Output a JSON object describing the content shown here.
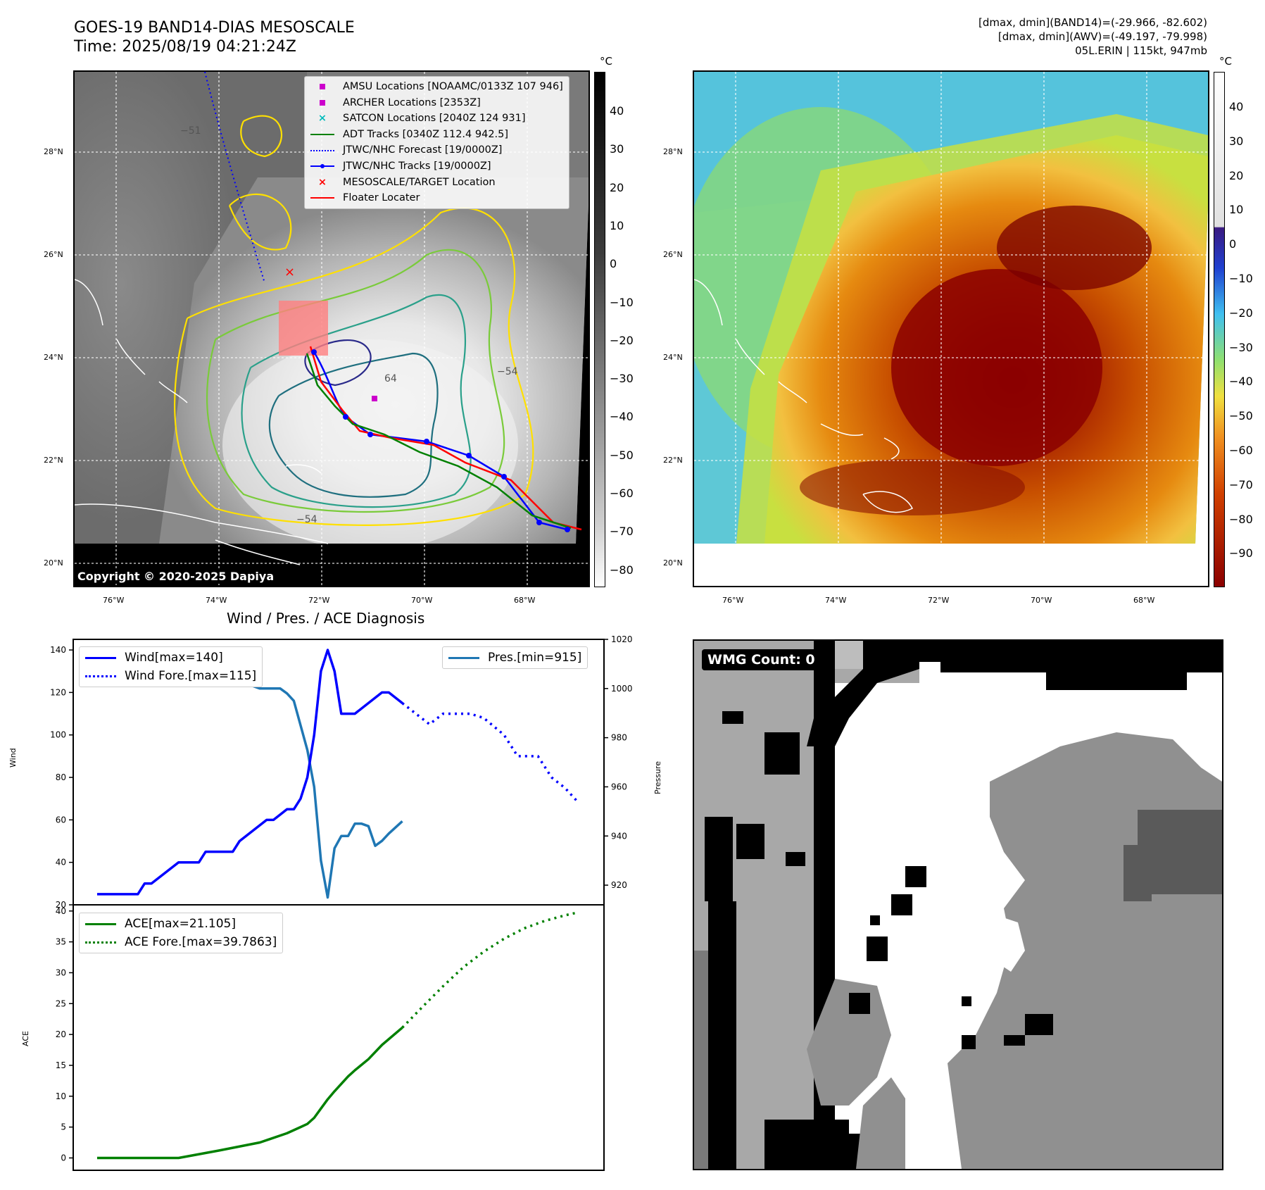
{
  "header": {
    "title_line1": "GOES-19 BAND14-DIAS MESOSCALE",
    "title_line2": "Time: 2025/08/19 04:21:24Z",
    "info_line1": "[dmax, dmin](BAND14)=(-29.966, -82.602)",
    "info_line2": "[dmax, dmin](AWV)=(-49.197, -79.998)",
    "info_line3": "05L.ERIN | 115kt, 947mb"
  },
  "map_axes": {
    "lat_labels": [
      "28°N",
      "26°N",
      "24°N",
      "22°N",
      "20°N"
    ],
    "lon_labels": [
      "76°W",
      "74°W",
      "72°W",
      "70°W",
      "68°W"
    ]
  },
  "ir_panel": {
    "colorbar_unit": "°C",
    "colorbar_ticks": [
      "40",
      "30",
      "20",
      "10",
      "0",
      "−10",
      "−20",
      "−30",
      "−40",
      "−50",
      "−60",
      "−70",
      "−80"
    ],
    "copyright": "Copyright © 2020-2025 Dapiya",
    "contour_labels": [
      "−51",
      "−54",
      "64",
      "−54",
      "−54",
      "−54",
      "−54",
      "−54",
      "−54"
    ],
    "legend": [
      {
        "label": "AMSU Locations [NOAAMC/0133Z 107 946]",
        "marker": "square",
        "color": "#cc00cc"
      },
      {
        "label": "ARCHER Locations [2353Z]",
        "marker": "square",
        "color": "#cc00cc"
      },
      {
        "label": "SATCON Locations [2040Z 124 931]",
        "marker": "x",
        "color": "#00bbbb"
      },
      {
        "label": "ADT Tracks [0340Z 112.4 942.5]",
        "marker": "line",
        "color": "#008000"
      },
      {
        "label": "JTWC/NHC Forecast [19/0000Z]",
        "marker": "dotted",
        "color": "#0000ff"
      },
      {
        "label": "JTWC/NHC Tracks [19/0000Z]",
        "marker": "linedot",
        "color": "#0000ff"
      },
      {
        "label": "MESOSCALE/TARGET Location",
        "marker": "x",
        "color": "#ff0000"
      },
      {
        "label": "Floater Locater",
        "marker": "line",
        "color": "#ff0000"
      }
    ]
  },
  "awv_panel": {
    "colorbar_unit": "°C",
    "colorbar_ticks": [
      "40",
      "30",
      "20",
      "10",
      "0",
      "−10",
      "−20",
      "−30",
      "−40",
      "−50",
      "−60",
      "−70",
      "−80",
      "−90"
    ]
  },
  "wmg_panel": {
    "count_label": "WMG Count: 0"
  },
  "colors": {
    "wind": "#0000ff",
    "pressure": "#1f77b4",
    "ace": "#008000"
  },
  "chart_data": [
    {
      "type": "line",
      "title": "Wind / Pres. / ACE Diagnosis",
      "ylabel": "Wind",
      "ylabel_right": "Pressure",
      "ylim": [
        20,
        145
      ],
      "ylim_right": [
        912,
        1020
      ],
      "yticks": [
        20,
        40,
        60,
        80,
        100,
        120,
        140
      ],
      "yticks_right": [
        920,
        940,
        960,
        980,
        1000,
        1020
      ],
      "legend": [
        "Wind[max=140]",
        "Wind Fore.[max=115]"
      ],
      "legend_right": [
        "Pres.[min=915]"
      ],
      "series": [
        {
          "name": "Wind[max=140]",
          "style": "solid",
          "axis": "left",
          "x": [
            0,
            6,
            7,
            8,
            12,
            13,
            15,
            16,
            20,
            21,
            25,
            26,
            28,
            29,
            30,
            31,
            32,
            33,
            34,
            35,
            36,
            37,
            38,
            42,
            43,
            45
          ],
          "y": [
            25,
            25,
            30,
            30,
            40,
            40,
            40,
            45,
            45,
            50,
            60,
            60,
            65,
            65,
            70,
            80,
            100,
            130,
            140,
            130,
            110,
            110,
            110,
            120,
            120,
            115
          ]
        },
        {
          "name": "Wind Fore.[max=115]",
          "style": "dotted",
          "axis": "left",
          "x": [
            45,
            47,
            49,
            51,
            53,
            55,
            57,
            60,
            62,
            65,
            67,
            69,
            71
          ],
          "y": [
            115,
            110,
            105,
            110,
            110,
            110,
            108,
            100,
            90,
            90,
            80,
            75,
            68
          ]
        },
        {
          "name": "Pres.[min=915]",
          "style": "solid",
          "axis": "right",
          "x": [
            0,
            1,
            2,
            3,
            5,
            8,
            10,
            12,
            14,
            18,
            20,
            22,
            24,
            27,
            28,
            29,
            30,
            31,
            32,
            33,
            34,
            35,
            36,
            37,
            38,
            39,
            40,
            41,
            42,
            43,
            45
          ],
          "y": [
            1013,
            1013,
            1012,
            1010,
            1008,
            1007,
            1006,
            1006,
            1005,
            1005,
            1004,
            1002,
            1000,
            1000,
            998,
            995,
            985,
            975,
            960,
            930,
            915,
            935,
            940,
            940,
            945,
            945,
            944,
            936,
            938,
            941,
            946
          ]
        }
      ]
    },
    {
      "type": "line",
      "ylabel": "ACE",
      "ylim": [
        -2,
        41
      ],
      "yticks": [
        0,
        5,
        10,
        15,
        20,
        25,
        30,
        35,
        40
      ],
      "legend": [
        "ACE[max=21.105]",
        "ACE Fore.[max=39.7863]"
      ],
      "series": [
        {
          "name": "ACE[max=21.105]",
          "style": "solid",
          "x": [
            0,
            12,
            18,
            24,
            28,
            30,
            31,
            32,
            33,
            34,
            35,
            36,
            37,
            38,
            40,
            42,
            45
          ],
          "y": [
            0,
            0,
            1.2,
            2.5,
            4,
            5,
            5.5,
            6.5,
            8,
            9.5,
            10.8,
            12,
            13.2,
            14.2,
            16,
            18.3,
            21.105
          ]
        },
        {
          "name": "ACE Fore.[max=39.7863]",
          "style": "dotted",
          "x": [
            45,
            48,
            51,
            54,
            57,
            60,
            63,
            66,
            69,
            71
          ],
          "y": [
            21.105,
            24.5,
            27.8,
            30.9,
            33.4,
            35.5,
            37.2,
            38.4,
            39.3,
            39.7863
          ]
        }
      ]
    }
  ]
}
